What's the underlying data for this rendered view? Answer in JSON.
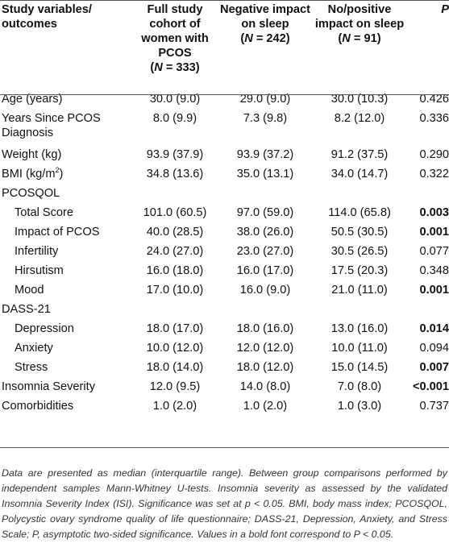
{
  "header": {
    "col0": "Study variables/ outcomes",
    "col1": "Full study cohort of women with PCOS",
    "col1_n": "(N = 333)",
    "col2": "Negative impact on sleep",
    "col2_n": "(N = 242)",
    "col3": "No/positive impact on sleep",
    "col3_n": "(N = 91)",
    "col4": "P"
  },
  "rows": [
    {
      "label": "Age (years)",
      "c1": "30.0 (9.0)",
      "c2": "29.0 (9.0)",
      "c3": "30.0 (10.3)",
      "p": "0.426"
    },
    {
      "label": "Years Since PCOS Diagnosis",
      "c1": "8.0 (9.9)",
      "c2": "7.3 (9.8)",
      "c3": "8.2 (12.0)",
      "p": "0.336"
    },
    {
      "label": "Weight (kg)",
      "c1": "93.9 (37.9)",
      "c2": "93.9 (37.2)",
      "c3": "91.2 (37.5)",
      "p": "0.290"
    },
    {
      "label": "BMI (kg/m",
      "label_sup": "2",
      "label_end": ")",
      "c1": "34.8 (13.6)",
      "c2": "35.0 (13.1)",
      "c3": "34.0 (14.7)",
      "p": "0.322"
    },
    {
      "label": "PCOSQOL"
    },
    {
      "label": "Total Score",
      "c1": "101.0 (60.5)",
      "c2": "97.0 (59.0)",
      "c3": "114.0 (65.8)",
      "p": "0.003"
    },
    {
      "label": "Impact of PCOS",
      "c1": "40.0 (28.5)",
      "c2": "38.0 (26.0)",
      "c3": "50.5 (30.5)",
      "p": "0.001"
    },
    {
      "label": "Infertility",
      "c1": "24.0 (27.0)",
      "c2": "23.0 (27.0)",
      "c3": "30.5 (26.5)",
      "p": "0.077"
    },
    {
      "label": "Hirsutism",
      "c1": "16.0 (18.0)",
      "c2": "16.0 (17.0)",
      "c3": "17.5 (20.3)",
      "p": "0.348"
    },
    {
      "label": "Mood",
      "c1": "17.0 (10.0)",
      "c2": "16.0 (9.0)",
      "c3": "21.0 (11.0)",
      "p": "0.001"
    },
    {
      "label": "DASS-21"
    },
    {
      "label": "Depression",
      "c1": "18.0 (17.0)",
      "c2": "18.0 (16.0)",
      "c3": "13.0 (16.0)",
      "p": "0.014"
    },
    {
      "label": "Anxiety",
      "c1": "10.0 (12.0)",
      "c2": "12.0 (12.0)",
      "c3": "10.0 (11.0)",
      "p": "0.094"
    },
    {
      "label": "Stress",
      "c1": "18.0 (14.0)",
      "c2": "18.0 (12.0)",
      "c3": "15.0 (14.5)",
      "p": "0.007"
    },
    {
      "label": "Insomnia Severity",
      "c1": "12.0 (9.5)",
      "c2": "14.0 (8.0)",
      "c3": "7.0 (8.0)",
      "p": "<0.001"
    },
    {
      "label": "Comorbidities",
      "c1": "1.0 (2.0)",
      "c2": "1.0 (2.0)",
      "c3": "1.0 (3.0)",
      "p": "0.737"
    }
  ],
  "footnote": "Data are presented as median (interquartile range). Between group comparisons performed by independent samples Mann-Whitney U-tests. Insomnia severity as assessed by the validated Insomnia Severity Index (ISI). Significance was set at p < 0.05. BMI, body mass index; PCOSQOL, Polycystic ovary syndrome quality of life questionnaire; DASS-21, Depression, Anxiety, and Stress Scale; P, asymptotic two-sided significance. Values in a bold font correspond to P < 0.05."
}
